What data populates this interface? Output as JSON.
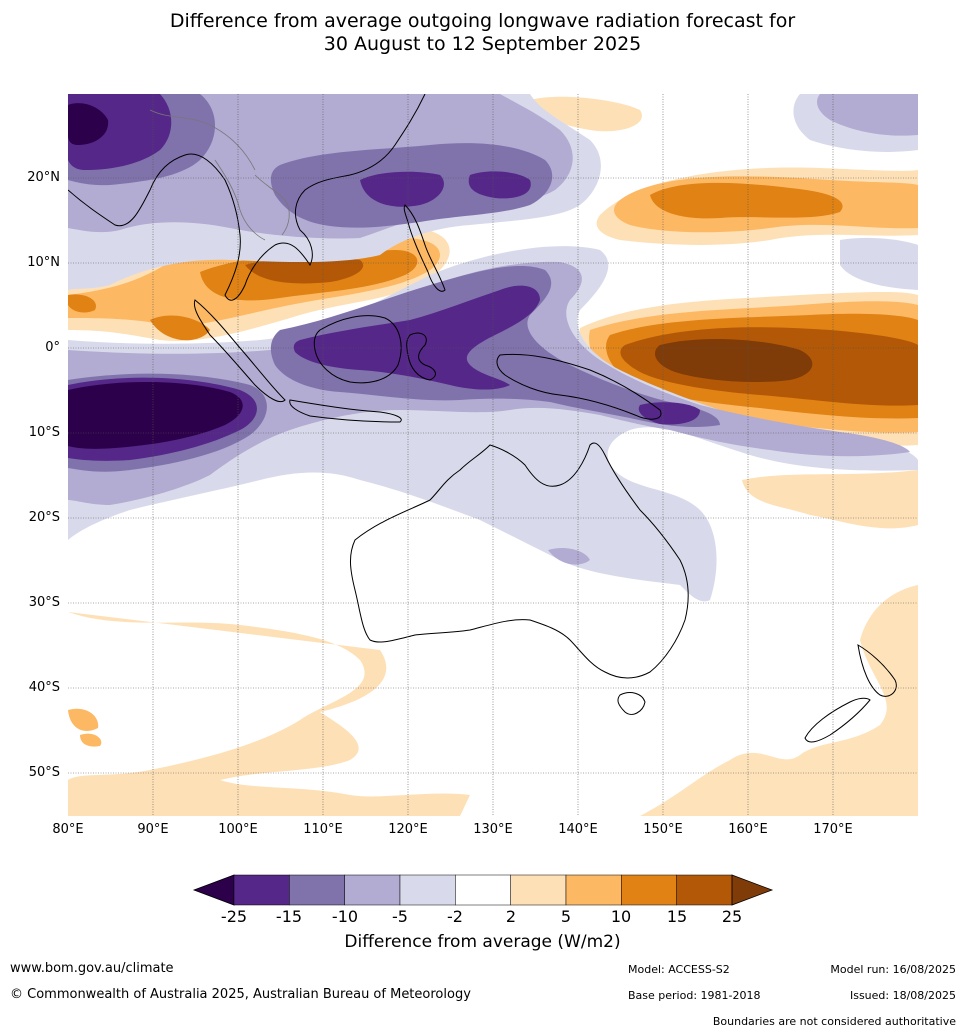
{
  "title_line1": "Difference from average outgoing longwave radiation forecast for",
  "title_line2": "30 August to 12 September 2025",
  "lat_labels": [
    "20°N",
    "10°N",
    "0°",
    "10°S",
    "20°S",
    "30°S",
    "40°S",
    "50°S"
  ],
  "lon_labels": [
    "80°E",
    "90°E",
    "100°E",
    "110°E",
    "120°E",
    "130°E",
    "140°E",
    "150°E",
    "160°E",
    "170°E"
  ],
  "colorbar": {
    "ticks": [
      "-25",
      "-15",
      "-10",
      "-5",
      "-2",
      "2",
      "5",
      "10",
      "15",
      "25"
    ],
    "colors": [
      "#2d004b",
      "#542788",
      "#8073ac",
      "#b2abd2",
      "#d8daeb",
      "#ffffff",
      "#fee0b6",
      "#fdb863",
      "#e08214",
      "#b35806",
      "#7f3b08"
    ],
    "label": "Difference from average (W/m2)"
  },
  "footer": {
    "website": "www.bom.gov.au/climate",
    "copyright": "© Commonwealth of Australia 2025, Australian Bureau of Meteorology",
    "model": "Model: ACCESS-S2",
    "base_period": "Base period: 1981-2018",
    "model_run": "Model run: 16/08/2025",
    "issued": "Issued: 18/08/2025",
    "disclaimer": "Boundaries are not considered authoritative"
  }
}
